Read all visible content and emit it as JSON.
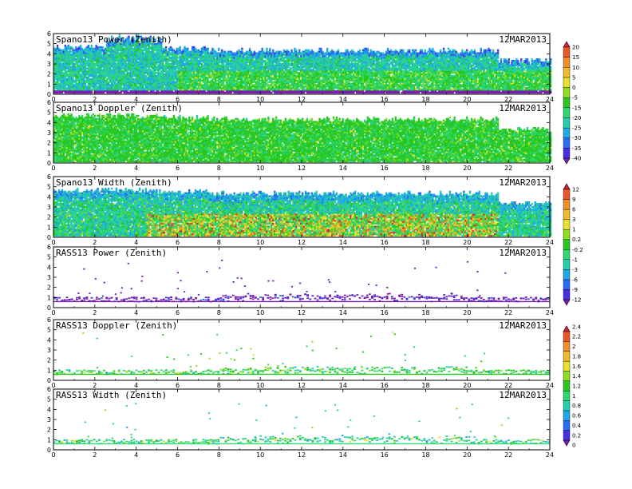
{
  "chart_data": [
    {
      "type": "heatmap",
      "title": "Spano13 Power (Zenith)",
      "date_label": "12MAR2013",
      "xlim": [
        0,
        24
      ],
      "ylim": [
        0,
        6
      ],
      "x_ticks": [
        "0",
        "2",
        "4",
        "6",
        "8",
        "10",
        "12",
        "14",
        "16",
        "18",
        "20",
        "22",
        "24"
      ],
      "y_ticks": [
        "0",
        "1",
        "2",
        "3",
        "4",
        "5",
        "6"
      ],
      "colorbar": {
        "colors": [
          "#7b1fb0",
          "#4a2fe0",
          "#2a6cf0",
          "#1fa8e8",
          "#27cdb0",
          "#2fd870",
          "#28c820",
          "#8fdc20",
          "#e8e030",
          "#f2b830",
          "#ef8f2a",
          "#e85828",
          "#d82040"
        ],
        "labels": [
          "-40",
          "-35",
          "-30",
          "-25",
          "-20",
          "-15",
          "-5",
          "0",
          "5",
          "10",
          "15",
          "20"
        ]
      }
    },
    {
      "type": "heatmap",
      "title": "Spano13 Doppler (Zenith)",
      "date_label": "12MAR2013",
      "xlim": [
        0,
        24
      ],
      "ylim": [
        0,
        6
      ],
      "x_ticks": [
        "0",
        "2",
        "4",
        "6",
        "8",
        "10",
        "12",
        "14",
        "16",
        "18",
        "20",
        "22",
        "24"
      ],
      "y_ticks": [
        "0",
        "1",
        "2",
        "3",
        "4",
        "5",
        "6"
      ]
    },
    {
      "type": "heatmap",
      "title": "Spano13 Width (Zenith)",
      "date_label": "12MAR2013",
      "xlim": [
        0,
        24
      ],
      "ylim": [
        0,
        6
      ],
      "x_ticks": [
        "0",
        "2",
        "4",
        "6",
        "8",
        "10",
        "12",
        "14",
        "16",
        "18",
        "20",
        "22",
        "24"
      ],
      "y_ticks": [
        "0",
        "1",
        "2",
        "3",
        "4",
        "5",
        "6"
      ],
      "colorbar": {
        "colors": [
          "#7b1fb0",
          "#4a2fe0",
          "#2a6cf0",
          "#1fa8e8",
          "#27cdb0",
          "#2fd870",
          "#28c820",
          "#8fdc20",
          "#e8e030",
          "#f2b830",
          "#ef8f2a",
          "#e85828",
          "#d82040"
        ],
        "labels": [
          "-12",
          "-9",
          "-6",
          "-3",
          "-1",
          "-0.2",
          "0.2",
          "1",
          "3",
          "6",
          "9",
          "12"
        ]
      }
    },
    {
      "type": "heatmap",
      "title": "RASS13 Power (Zenith)",
      "date_label": "12MAR2013",
      "xlim": [
        0,
        24
      ],
      "ylim": [
        0,
        6
      ],
      "x_ticks": [
        "0",
        "2",
        "4",
        "6",
        "8",
        "10",
        "12",
        "14",
        "16",
        "18",
        "20",
        "22",
        "24"
      ],
      "y_ticks": [
        "0",
        "1",
        "2",
        "3",
        "4",
        "5",
        "6"
      ]
    },
    {
      "type": "heatmap",
      "title": "RASS13 Doppler (Zenith)",
      "date_label": "12MAR2013",
      "xlim": [
        0,
        24
      ],
      "ylim": [
        0,
        6
      ],
      "x_ticks": [
        "0",
        "2",
        "4",
        "6",
        "8",
        "10",
        "12",
        "14",
        "16",
        "18",
        "20",
        "22",
        "24"
      ],
      "y_ticks": [
        "0",
        "1",
        "2",
        "3",
        "4",
        "5",
        "6"
      ],
      "colorbar": {
        "colors": [
          "#7b1fb0",
          "#4a2fe0",
          "#2a6cf0",
          "#1fa8e8",
          "#27cdb0",
          "#2fd870",
          "#28c820",
          "#8fdc20",
          "#e8e030",
          "#f2b830",
          "#ef8f2a",
          "#e85828",
          "#d82040"
        ],
        "labels": [
          "0",
          "0.2",
          "0.4",
          "0.6",
          "0.8",
          "1",
          "1.2",
          "1.4",
          "1.6",
          "1.8",
          "2",
          "2.2",
          "2.4"
        ]
      }
    },
    {
      "type": "heatmap",
      "title": "RASS13 Width (Zenith)",
      "date_label": "12MAR2013",
      "xlim": [
        0,
        24
      ],
      "ylim": [
        0,
        6
      ],
      "x_ticks": [
        "0",
        "2",
        "4",
        "6",
        "8",
        "10",
        "12",
        "14",
        "16",
        "18",
        "20",
        "22",
        "24"
      ],
      "y_ticks": [
        "0",
        "1",
        "2",
        "3",
        "4",
        "5",
        "6"
      ]
    }
  ]
}
